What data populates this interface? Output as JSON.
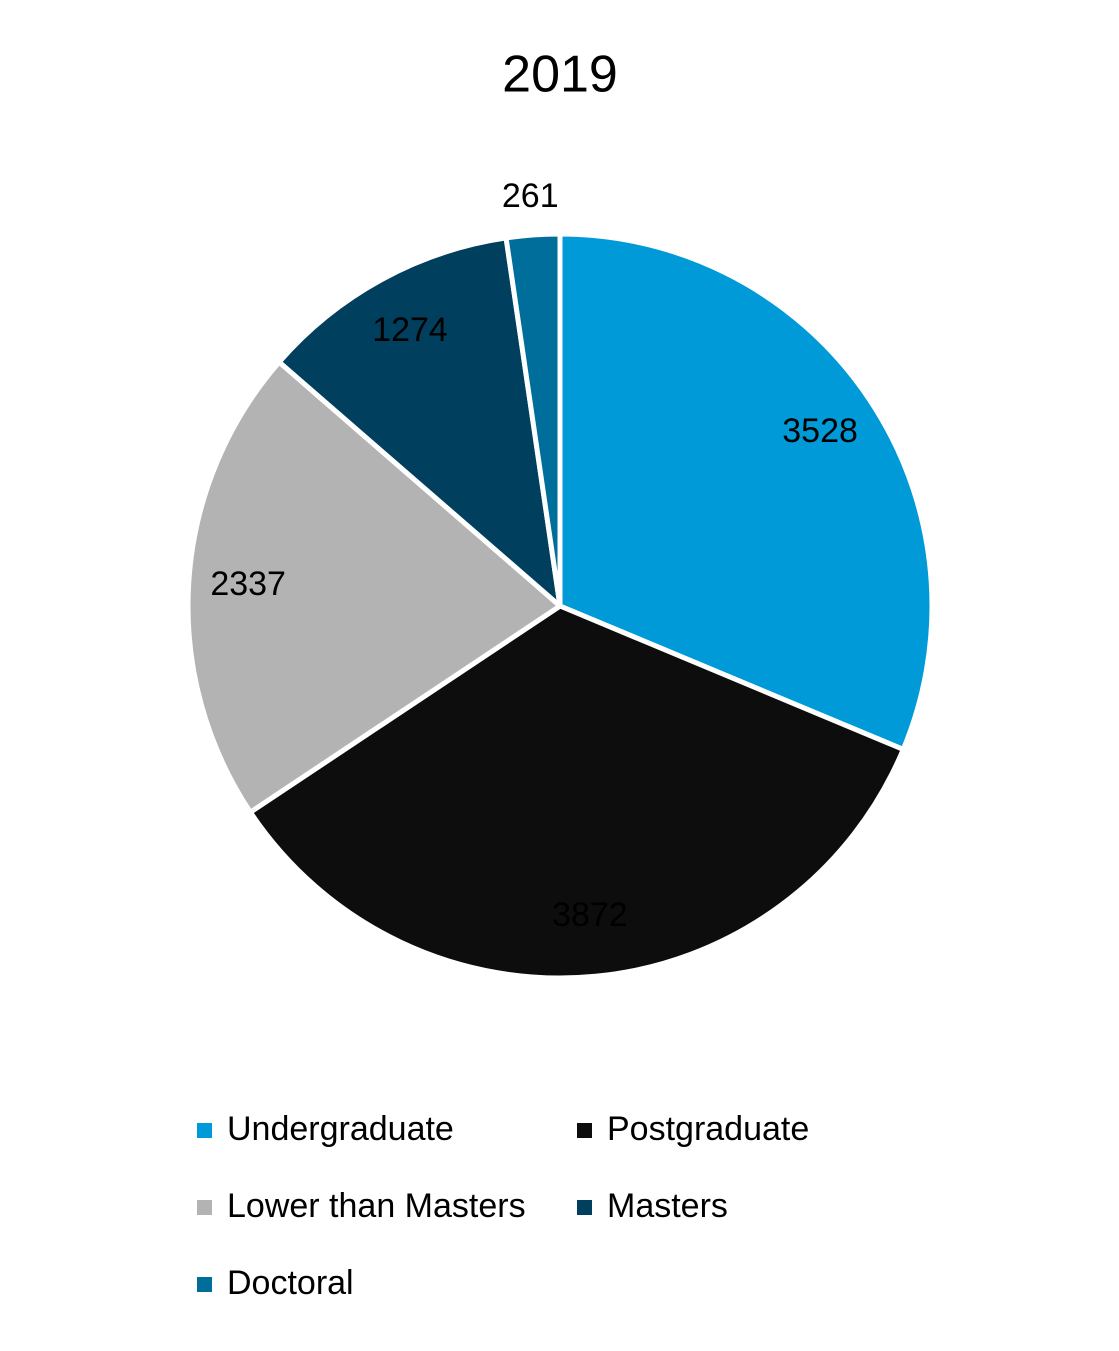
{
  "chart_data": {
    "type": "pie",
    "title": "2019",
    "categories": [
      "Undergraduate",
      "Postgraduate",
      "Lower than Masters",
      "Masters",
      "Doctoral"
    ],
    "values": [
      3528,
      3872,
      2337,
      1274,
      261
    ],
    "colors": [
      "#009ad9",
      "#0d0d0d",
      "#b3b3b3",
      "#00405e",
      "#006e9a"
    ]
  }
}
